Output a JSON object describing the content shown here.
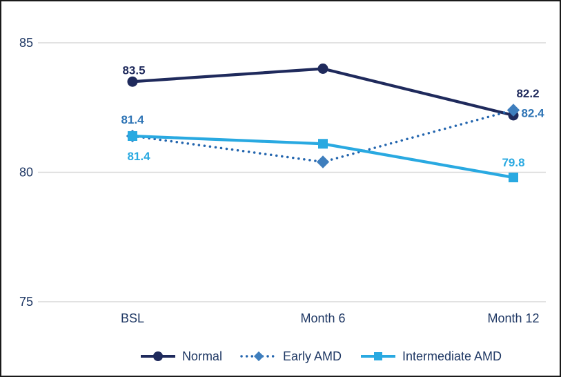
{
  "figure": {
    "background": "#FFFFFF",
    "border_color": "#1A1A1A"
  },
  "chart_data": {
    "type": "line",
    "categories": [
      "BSL",
      "Month 6",
      "Month 12"
    ],
    "y_ticks": [
      85,
      80,
      75
    ],
    "ylim": [
      75,
      85
    ],
    "grid": true,
    "gridline_color": "#D9D9D9",
    "axis_text_color": "#1F3864",
    "legend_position": "bottom",
    "series": [
      {
        "name": "Normal",
        "line_style": "solid",
        "marker": "circle",
        "color": "#1F2A5C",
        "marker_fill": "#1F2A5C",
        "label_color": "#1F2A5C",
        "values": [
          83.5,
          84.0,
          82.2
        ],
        "point_labels": [
          {
            "index": 0,
            "text": "83.5",
            "dx": 2,
            "dy": -17
          },
          {
            "index": 2,
            "text": "82.2",
            "dx": 21,
            "dy": -32
          }
        ]
      },
      {
        "name": "Early AMD",
        "line_style": "dotted",
        "marker": "diamond",
        "color": "#2365AE",
        "marker_fill": "#3E7EBD",
        "label_color": "#2E74B5",
        "values": [
          81.4,
          80.4,
          82.4
        ],
        "point_labels": [
          {
            "index": 0,
            "text": "81.4",
            "dx": 0,
            "dy": -24
          },
          {
            "index": 2,
            "text": "82.4",
            "dx": 28,
            "dy": 4
          }
        ]
      },
      {
        "name": "Intermediate AMD",
        "line_style": "solid",
        "marker": "square",
        "color": "#29A9E1",
        "marker_fill": "#29A9E1",
        "label_color": "#29A9E1",
        "values": [
          81.4,
          81.1,
          79.8
        ],
        "point_labels": [
          {
            "index": 0,
            "text": "81.4",
            "dx": 9,
            "dy": 29
          },
          {
            "index": 2,
            "text": "79.8",
            "dx": 0,
            "dy": -22
          }
        ]
      }
    ]
  }
}
